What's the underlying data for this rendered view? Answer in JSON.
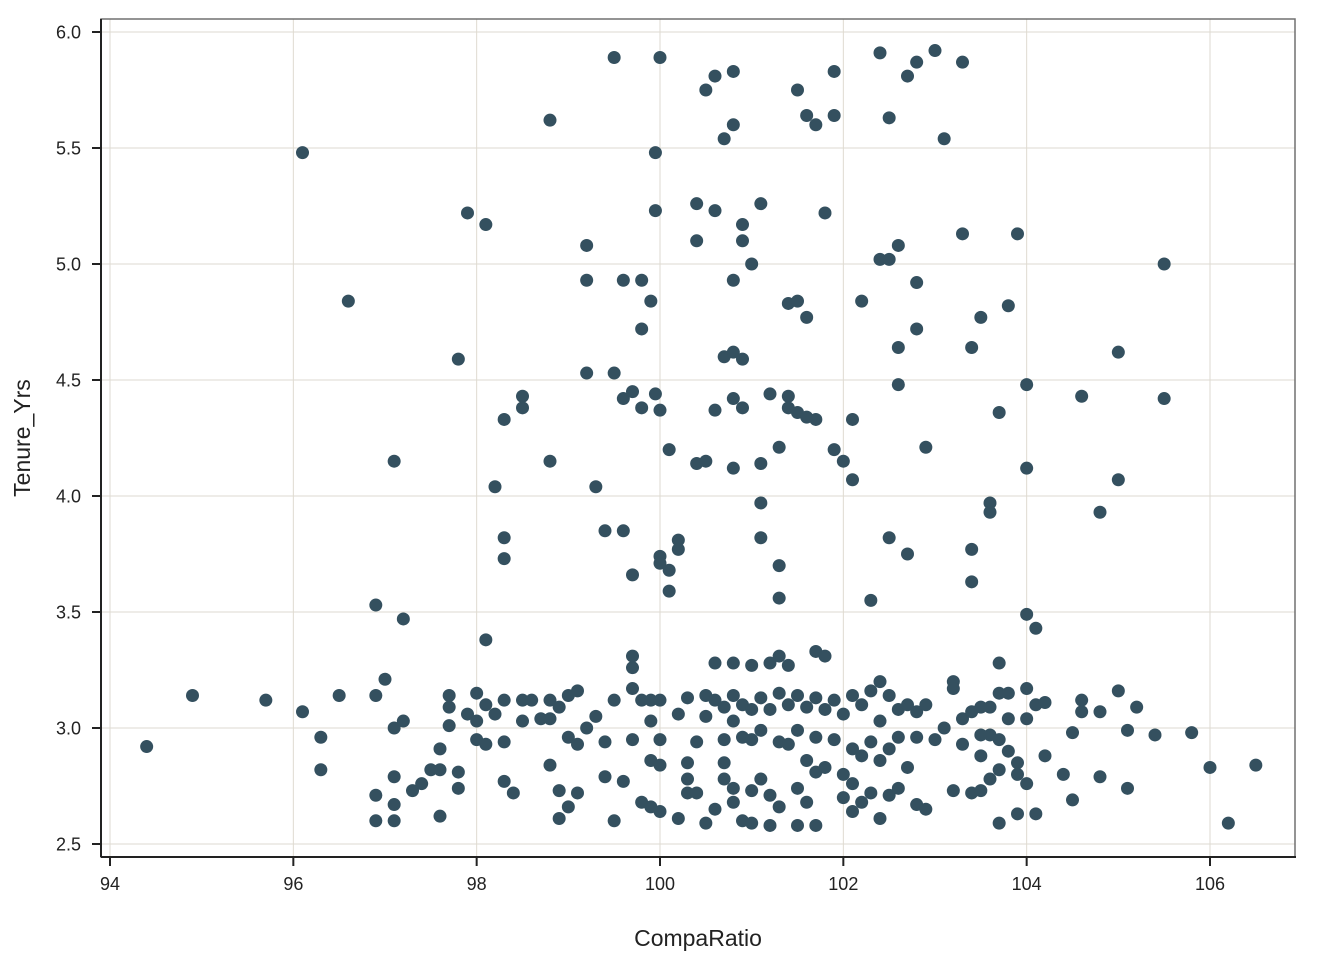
{
  "chart_data": {
    "type": "scatter",
    "title": "",
    "xlabel": "CompaRatio",
    "ylabel": "Tenure_Yrs",
    "xlim": [
      93.9,
      106.95
    ],
    "ylim": [
      2.45,
      6.05
    ],
    "x_ticks": [
      94,
      96,
      98,
      100,
      102,
      104,
      106
    ],
    "y_ticks": [
      2.5,
      3.0,
      3.5,
      4.0,
      4.5,
      5.0,
      5.5,
      6.0
    ],
    "x_tick_labels": [
      "94",
      "96",
      "98",
      "100",
      "102",
      "104",
      "106"
    ],
    "y_tick_labels": [
      "2.5",
      "3.0",
      "3.5",
      "4.0",
      "4.5",
      "5.0",
      "5.5",
      "6.0"
    ],
    "grid": true,
    "legend": null,
    "marker_color": "#34505f",
    "grid_color": "#dedad0",
    "axis_color": "#222222",
    "panel_border_color": "#707070",
    "points": [
      [
        94.4,
        2.92
      ],
      [
        94.9,
        3.14
      ],
      [
        95.7,
        3.12
      ],
      [
        96.1,
        3.07
      ],
      [
        96.1,
        5.48
      ],
      [
        96.3,
        2.96
      ],
      [
        96.3,
        2.82
      ],
      [
        96.5,
        3.14
      ],
      [
        96.6,
        4.84
      ],
      [
        96.9,
        3.14
      ],
      [
        96.9,
        3.53
      ],
      [
        96.9,
        2.71
      ],
      [
        96.9,
        2.6
      ],
      [
        97.0,
        3.21
      ],
      [
        97.1,
        3.0
      ],
      [
        97.1,
        2.67
      ],
      [
        97.1,
        2.6
      ],
      [
        97.1,
        4.15
      ],
      [
        97.1,
        2.79
      ],
      [
        97.2,
        3.03
      ],
      [
        97.2,
        3.47
      ],
      [
        97.3,
        2.73
      ],
      [
        97.4,
        2.76
      ],
      [
        97.5,
        2.82
      ],
      [
        97.6,
        2.91
      ],
      [
        97.6,
        2.82
      ],
      [
        97.6,
        2.62
      ],
      [
        97.7,
        3.14
      ],
      [
        97.7,
        3.09
      ],
      [
        97.7,
        3.01
      ],
      [
        97.8,
        2.81
      ],
      [
        97.8,
        2.74
      ],
      [
        97.8,
        4.59
      ],
      [
        97.9,
        5.22
      ],
      [
        97.9,
        3.06
      ],
      [
        98.0,
        3.15
      ],
      [
        98.0,
        3.03
      ],
      [
        98.0,
        2.95
      ],
      [
        98.1,
        3.1
      ],
      [
        98.1,
        3.38
      ],
      [
        98.1,
        2.93
      ],
      [
        98.1,
        5.17
      ],
      [
        98.2,
        3.06
      ],
      [
        98.2,
        4.04
      ],
      [
        98.3,
        4.33
      ],
      [
        98.3,
        3.82
      ],
      [
        98.3,
        3.12
      ],
      [
        98.3,
        2.77
      ],
      [
        98.3,
        2.94
      ],
      [
        98.3,
        3.73
      ],
      [
        98.4,
        2.72
      ],
      [
        98.5,
        3.03
      ],
      [
        98.5,
        3.12
      ],
      [
        98.5,
        4.43
      ],
      [
        98.5,
        4.38
      ],
      [
        98.6,
        3.12
      ],
      [
        98.7,
        3.04
      ],
      [
        98.8,
        3.12
      ],
      [
        98.8,
        2.84
      ],
      [
        98.8,
        3.04
      ],
      [
        98.8,
        4.15
      ],
      [
        98.8,
        5.62
      ],
      [
        98.9,
        2.61
      ],
      [
        98.9,
        3.09
      ],
      [
        98.9,
        2.73
      ],
      [
        99.0,
        3.14
      ],
      [
        99.0,
        2.96
      ],
      [
        99.0,
        2.66
      ],
      [
        99.1,
        2.72
      ],
      [
        99.1,
        3.16
      ],
      [
        99.1,
        2.93
      ],
      [
        99.2,
        3.0
      ],
      [
        99.2,
        5.08
      ],
      [
        99.2,
        4.93
      ],
      [
        99.2,
        4.53
      ],
      [
        99.3,
        4.04
      ],
      [
        99.3,
        3.05
      ],
      [
        99.4,
        2.94
      ],
      [
        99.4,
        2.79
      ],
      [
        99.4,
        3.85
      ],
      [
        99.5,
        5.89
      ],
      [
        99.5,
        3.12
      ],
      [
        99.5,
        4.53
      ],
      [
        99.5,
        2.6
      ],
      [
        99.6,
        4.93
      ],
      [
        99.6,
        4.42
      ],
      [
        99.6,
        3.85
      ],
      [
        99.6,
        2.77
      ],
      [
        99.7,
        3.66
      ],
      [
        99.7,
        4.45
      ],
      [
        99.7,
        3.17
      ],
      [
        99.7,
        3.26
      ],
      [
        99.7,
        3.31
      ],
      [
        99.7,
        2.95
      ],
      [
        99.8,
        4.93
      ],
      [
        99.8,
        4.72
      ],
      [
        99.8,
        4.38
      ],
      [
        99.8,
        3.12
      ],
      [
        99.8,
        2.68
      ],
      [
        99.9,
        4.84
      ],
      [
        99.9,
        3.03
      ],
      [
        99.9,
        3.12
      ],
      [
        99.9,
        2.86
      ],
      [
        99.9,
        2.66
      ],
      [
        99.95,
        5.48
      ],
      [
        99.95,
        5.23
      ],
      [
        99.95,
        4.44
      ],
      [
        100.0,
        5.89
      ],
      [
        100.0,
        3.74
      ],
      [
        100.0,
        3.71
      ],
      [
        100.0,
        3.12
      ],
      [
        100.0,
        2.95
      ],
      [
        100.0,
        2.64
      ],
      [
        100.0,
        2.84
      ],
      [
        100.0,
        4.37
      ],
      [
        100.1,
        3.68
      ],
      [
        100.1,
        3.59
      ],
      [
        100.1,
        4.2
      ],
      [
        100.2,
        3.81
      ],
      [
        100.2,
        3.77
      ],
      [
        100.2,
        3.06
      ],
      [
        100.2,
        2.61
      ],
      [
        100.3,
        2.78
      ],
      [
        100.3,
        2.72
      ],
      [
        100.3,
        3.13
      ],
      [
        100.3,
        2.85
      ],
      [
        100.4,
        5.26
      ],
      [
        100.4,
        5.1
      ],
      [
        100.4,
        2.94
      ],
      [
        100.4,
        4.14
      ],
      [
        100.4,
        2.72
      ],
      [
        100.5,
        5.75
      ],
      [
        100.5,
        4.15
      ],
      [
        100.5,
        3.14
      ],
      [
        100.5,
        3.05
      ],
      [
        100.5,
        2.59
      ],
      [
        100.6,
        5.81
      ],
      [
        100.6,
        5.23
      ],
      [
        100.6,
        4.37
      ],
      [
        100.6,
        3.28
      ],
      [
        100.6,
        3.12
      ],
      [
        100.6,
        2.65
      ],
      [
        100.7,
        5.54
      ],
      [
        100.7,
        4.6
      ],
      [
        100.7,
        3.09
      ],
      [
        100.7,
        2.95
      ],
      [
        100.7,
        2.85
      ],
      [
        100.7,
        2.78
      ],
      [
        100.8,
        5.83
      ],
      [
        100.8,
        5.6
      ],
      [
        100.8,
        4.93
      ],
      [
        100.8,
        4.62
      ],
      [
        100.8,
        4.42
      ],
      [
        100.8,
        4.12
      ],
      [
        100.8,
        3.28
      ],
      [
        100.8,
        3.14
      ],
      [
        100.8,
        3.03
      ],
      [
        100.8,
        2.74
      ],
      [
        100.8,
        2.68
      ],
      [
        100.9,
        5.17
      ],
      [
        100.9,
        5.1
      ],
      [
        100.9,
        4.59
      ],
      [
        100.9,
        4.38
      ],
      [
        100.9,
        3.1
      ],
      [
        100.9,
        2.96
      ],
      [
        100.9,
        2.6
      ],
      [
        101.0,
        5.0
      ],
      [
        101.0,
        3.27
      ],
      [
        101.0,
        3.08
      ],
      [
        101.0,
        2.95
      ],
      [
        101.0,
        2.73
      ],
      [
        101.0,
        2.59
      ],
      [
        101.1,
        5.26
      ],
      [
        101.1,
        3.97
      ],
      [
        101.1,
        3.82
      ],
      [
        101.1,
        4.14
      ],
      [
        101.1,
        3.13
      ],
      [
        101.1,
        2.99
      ],
      [
        101.1,
        2.78
      ],
      [
        101.2,
        4.44
      ],
      [
        101.2,
        3.28
      ],
      [
        101.2,
        3.08
      ],
      [
        101.2,
        2.58
      ],
      [
        101.2,
        2.71
      ],
      [
        101.3,
        4.21
      ],
      [
        101.3,
        3.7
      ],
      [
        101.3,
        3.56
      ],
      [
        101.3,
        3.31
      ],
      [
        101.3,
        3.15
      ],
      [
        101.3,
        2.94
      ],
      [
        101.3,
        2.66
      ],
      [
        101.4,
        4.83
      ],
      [
        101.4,
        4.43
      ],
      [
        101.4,
        4.38
      ],
      [
        101.4,
        3.27
      ],
      [
        101.4,
        3.1
      ],
      [
        101.4,
        2.93
      ],
      [
        101.5,
        4.84
      ],
      [
        101.5,
        5.75
      ],
      [
        101.5,
        4.36
      ],
      [
        101.5,
        3.14
      ],
      [
        101.5,
        2.99
      ],
      [
        101.5,
        2.74
      ],
      [
        101.5,
        2.58
      ],
      [
        101.6,
        5.64
      ],
      [
        101.6,
        4.77
      ],
      [
        101.6,
        4.34
      ],
      [
        101.6,
        3.09
      ],
      [
        101.6,
        2.86
      ],
      [
        101.6,
        2.68
      ],
      [
        101.7,
        5.6
      ],
      [
        101.7,
        4.33
      ],
      [
        101.7,
        3.33
      ],
      [
        101.7,
        3.13
      ],
      [
        101.7,
        2.96
      ],
      [
        101.7,
        2.81
      ],
      [
        101.7,
        2.58
      ],
      [
        101.8,
        5.22
      ],
      [
        101.8,
        3.31
      ],
      [
        101.8,
        3.08
      ],
      [
        101.8,
        2.83
      ],
      [
        101.9,
        5.83
      ],
      [
        101.9,
        5.64
      ],
      [
        101.9,
        4.2
      ],
      [
        101.9,
        3.12
      ],
      [
        101.9,
        2.95
      ],
      [
        102.0,
        4.15
      ],
      [
        102.0,
        3.06
      ],
      [
        102.0,
        2.8
      ],
      [
        102.0,
        2.7
      ],
      [
        102.1,
        4.33
      ],
      [
        102.1,
        4.07
      ],
      [
        102.1,
        3.14
      ],
      [
        102.1,
        2.91
      ],
      [
        102.1,
        2.76
      ],
      [
        102.1,
        2.64
      ],
      [
        102.2,
        4.84
      ],
      [
        102.2,
        3.1
      ],
      [
        102.2,
        2.88
      ],
      [
        102.2,
        2.68
      ],
      [
        102.3,
        3.55
      ],
      [
        102.3,
        3.16
      ],
      [
        102.3,
        2.94
      ],
      [
        102.3,
        2.72
      ],
      [
        102.4,
        5.91
      ],
      [
        102.4,
        5.02
      ],
      [
        102.4,
        3.2
      ],
      [
        102.4,
        3.03
      ],
      [
        102.4,
        2.86
      ],
      [
        102.4,
        2.61
      ],
      [
        102.5,
        5.63
      ],
      [
        102.5,
        5.02
      ],
      [
        102.5,
        3.14
      ],
      [
        102.5,
        2.91
      ],
      [
        102.5,
        2.71
      ],
      [
        102.5,
        3.82
      ],
      [
        102.6,
        5.08
      ],
      [
        102.6,
        4.64
      ],
      [
        102.6,
        4.48
      ],
      [
        102.6,
        3.08
      ],
      [
        102.6,
        2.96
      ],
      [
        102.6,
        2.74
      ],
      [
        102.7,
        5.81
      ],
      [
        102.7,
        3.75
      ],
      [
        102.7,
        3.1
      ],
      [
        102.7,
        2.83
      ],
      [
        102.8,
        5.87
      ],
      [
        102.8,
        4.92
      ],
      [
        102.8,
        4.72
      ],
      [
        102.8,
        3.07
      ],
      [
        102.8,
        2.96
      ],
      [
        102.8,
        2.67
      ],
      [
        102.9,
        4.21
      ],
      [
        102.9,
        3.1
      ],
      [
        102.9,
        2.65
      ],
      [
        103.0,
        5.92
      ],
      [
        103.0,
        2.95
      ],
      [
        103.1,
        5.54
      ],
      [
        103.1,
        3.0
      ],
      [
        103.2,
        3.2
      ],
      [
        103.2,
        3.17
      ],
      [
        103.2,
        2.73
      ],
      [
        103.3,
        5.87
      ],
      [
        103.3,
        5.13
      ],
      [
        103.3,
        3.04
      ],
      [
        103.3,
        2.93
      ],
      [
        103.4,
        4.64
      ],
      [
        103.4,
        3.77
      ],
      [
        103.4,
        3.63
      ],
      [
        103.4,
        3.07
      ],
      [
        103.4,
        2.72
      ],
      [
        103.5,
        4.77
      ],
      [
        103.5,
        3.09
      ],
      [
        103.5,
        2.97
      ],
      [
        103.5,
        2.88
      ],
      [
        103.5,
        2.73
      ],
      [
        103.6,
        3.97
      ],
      [
        103.6,
        3.93
      ],
      [
        103.6,
        3.09
      ],
      [
        103.6,
        2.78
      ],
      [
        103.6,
        2.97
      ],
      [
        103.7,
        4.36
      ],
      [
        103.7,
        3.28
      ],
      [
        103.7,
        3.15
      ],
      [
        103.7,
        2.95
      ],
      [
        103.7,
        2.82
      ],
      [
        103.7,
        2.59
      ],
      [
        103.8,
        4.82
      ],
      [
        103.8,
        3.04
      ],
      [
        103.8,
        3.15
      ],
      [
        103.8,
        2.9
      ],
      [
        103.9,
        5.13
      ],
      [
        103.9,
        2.85
      ],
      [
        103.9,
        2.8
      ],
      [
        103.9,
        2.63
      ],
      [
        104.0,
        3.49
      ],
      [
        104.0,
        3.17
      ],
      [
        104.0,
        3.04
      ],
      [
        104.0,
        2.76
      ],
      [
        104.0,
        4.48
      ],
      [
        104.0,
        4.12
      ],
      [
        104.1,
        3.43
      ],
      [
        104.1,
        3.1
      ],
      [
        104.1,
        2.63
      ],
      [
        104.2,
        3.11
      ],
      [
        104.2,
        2.88
      ],
      [
        104.4,
        2.8
      ],
      [
        104.5,
        2.69
      ],
      [
        104.5,
        2.98
      ],
      [
        104.6,
        4.43
      ],
      [
        104.6,
        3.12
      ],
      [
        104.6,
        3.07
      ],
      [
        104.8,
        3.07
      ],
      [
        104.8,
        3.93
      ],
      [
        104.8,
        2.79
      ],
      [
        105.0,
        4.62
      ],
      [
        105.0,
        4.07
      ],
      [
        105.0,
        3.16
      ],
      [
        105.1,
        2.99
      ],
      [
        105.1,
        2.74
      ],
      [
        105.2,
        3.09
      ],
      [
        105.4,
        2.97
      ],
      [
        105.5,
        5.0
      ],
      [
        105.5,
        4.42
      ],
      [
        105.8,
        2.98
      ],
      [
        106.0,
        2.83
      ],
      [
        106.2,
        2.59
      ],
      [
        106.5,
        2.84
      ]
    ]
  }
}
